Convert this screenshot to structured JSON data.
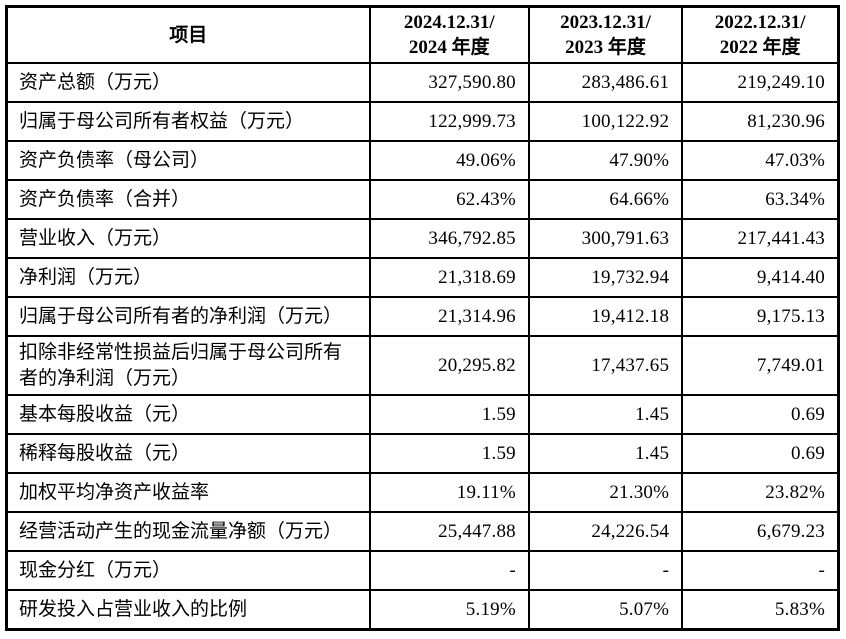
{
  "table": {
    "columns": [
      "项目",
      "2024.12.31/\n2024 年度",
      "2023.12.31/\n2023 年度",
      "2022.12.31/\n2022 年度"
    ],
    "rows": [
      {
        "label": "资产总额（万元）",
        "values": [
          "327,590.80",
          "283,486.61",
          "219,249.10"
        ]
      },
      {
        "label": "归属于母公司所有者权益（万元）",
        "values": [
          "122,999.73",
          "100,122.92",
          "81,230.96"
        ]
      },
      {
        "label": "资产负债率（母公司）",
        "values": [
          "49.06%",
          "47.90%",
          "47.03%"
        ]
      },
      {
        "label": "资产负债率（合并）",
        "values": [
          "62.43%",
          "64.66%",
          "63.34%"
        ]
      },
      {
        "label": "营业收入（万元）",
        "values": [
          "346,792.85",
          "300,791.63",
          "217,441.43"
        ]
      },
      {
        "label": "净利润（万元）",
        "values": [
          "21,318.69",
          "19,732.94",
          "9,414.40"
        ]
      },
      {
        "label": "归属于母公司所有者的净利润（万元）",
        "values": [
          "21,314.96",
          "19,412.18",
          "9,175.13"
        ]
      },
      {
        "label": "扣除非经常性损益后归属于母公司所有者的净利润（万元）",
        "values": [
          "20,295.82",
          "17,437.65",
          "7,749.01"
        ]
      },
      {
        "label": "基本每股收益（元）",
        "values": [
          "1.59",
          "1.45",
          "0.69"
        ]
      },
      {
        "label": "稀释每股收益（元）",
        "values": [
          "1.59",
          "1.45",
          "0.69"
        ]
      },
      {
        "label": "加权平均净资产收益率",
        "values": [
          "19.11%",
          "21.30%",
          "23.82%"
        ]
      },
      {
        "label": "经营活动产生的现金流量净额（万元）",
        "values": [
          "25,447.88",
          "24,226.54",
          "6,679.23"
        ]
      },
      {
        "label": "现金分红（万元）",
        "values": [
          "-",
          "-",
          "-"
        ]
      },
      {
        "label": "研发投入占营业收入的比例",
        "values": [
          "5.19%",
          "5.07%",
          "5.83%"
        ]
      }
    ],
    "colors": {
      "border": "#000000",
      "text": "#000000",
      "background": "#ffffff"
    }
  }
}
